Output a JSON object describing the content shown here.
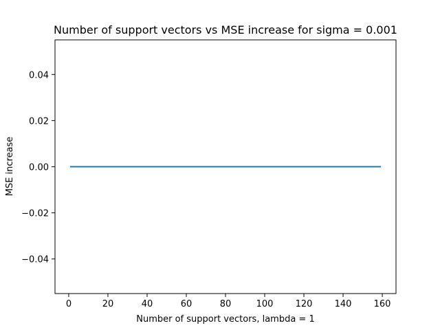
{
  "chart_data": {
    "type": "line",
    "title": "Number of support vectors vs MSE increase for sigma = 0.001",
    "xlabel": "Number of support vectors, lambda = 1",
    "ylabel": "MSE increase",
    "xlim": [
      -7,
      167
    ],
    "ylim": [
      -0.055,
      0.055
    ],
    "x_ticks": [
      0,
      20,
      40,
      60,
      80,
      100,
      120,
      140,
      160
    ],
    "x_tick_labels": [
      "0",
      "20",
      "40",
      "60",
      "80",
      "100",
      "120",
      "140",
      "160"
    ],
    "y_ticks": [
      -0.04,
      -0.02,
      0.0,
      0.02,
      0.04
    ],
    "y_tick_labels": [
      "−0.04",
      "−0.02",
      "0.00",
      "0.02",
      "0.04"
    ],
    "grid": false,
    "series": [
      {
        "color": "#1f77b4",
        "x": [
          1,
          159
        ],
        "y": [
          0.0,
          0.0
        ]
      }
    ]
  }
}
